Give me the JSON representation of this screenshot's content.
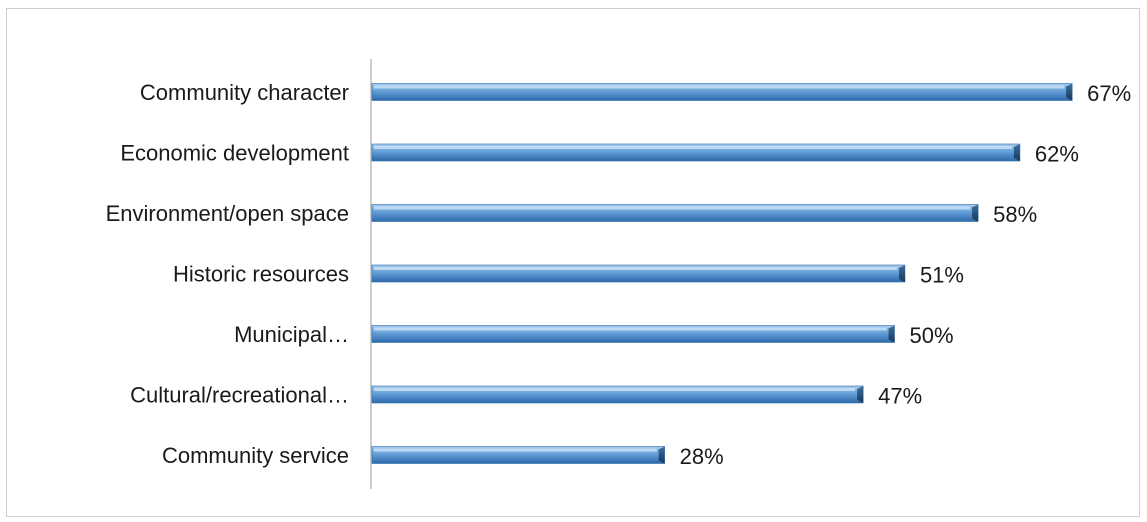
{
  "chart_data": {
    "type": "bar",
    "orientation": "horizontal",
    "categories": [
      "Community character",
      "Economic development",
      "Environment/open space",
      "Historic resources",
      "Municipal…",
      "Cultural/recreational…",
      "Community service"
    ],
    "values": [
      67,
      62,
      58,
      51,
      50,
      47,
      28
    ],
    "value_labels": [
      "67%",
      "62%",
      "58%",
      "51%",
      "50%",
      "47%",
      "28%"
    ],
    "unit": "%",
    "title": "",
    "xlabel": "",
    "ylabel": "",
    "xlim": [
      0,
      70
    ],
    "grid": false,
    "legend": "none",
    "colors": {
      "bar_light": "#a9cdf0",
      "bar_mid": "#5b9bd5",
      "bar_dark": "#2e6aa8",
      "bar_end": "#1f4e79",
      "axis": "#9a9a9a"
    }
  }
}
